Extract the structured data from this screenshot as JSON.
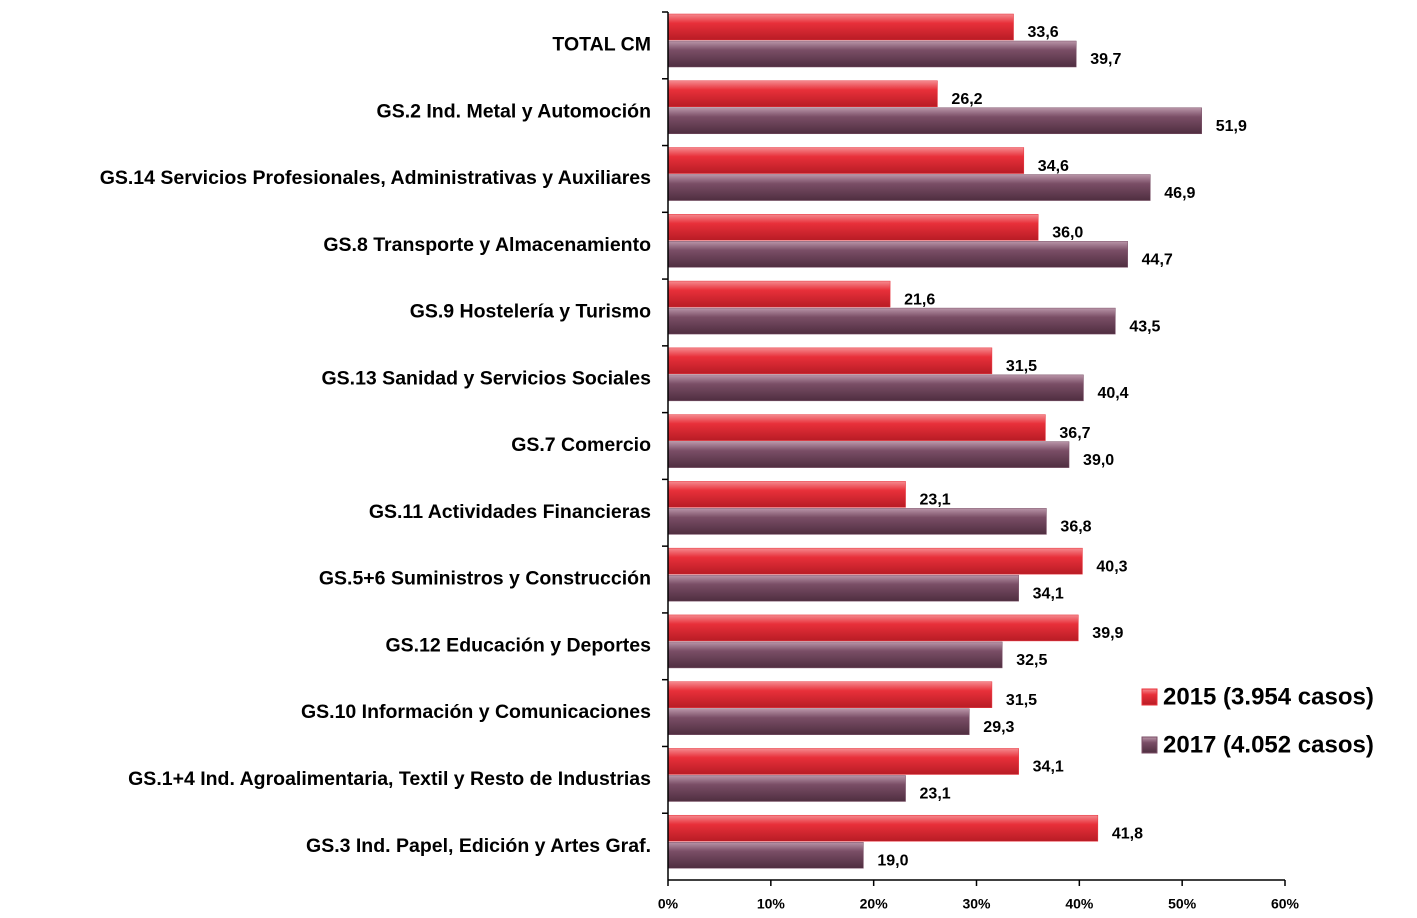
{
  "chart_data": {
    "type": "bar",
    "orientation": "horizontal",
    "categories": [
      "TOTAL CM",
      "GS.2 Ind. Metal y Automoción",
      "GS.14 Servicios Profesionales, Administrativas y Auxiliares",
      "GS.8 Transporte y Almacenamiento",
      "GS.9 Hostelería y Turismo",
      "GS.13 Sanidad y Servicios Sociales",
      "GS.7 Comercio",
      "GS.11 Actividades Financieras",
      "GS.5+6 Suministros  y Construcción",
      "GS.12 Educación y Deportes",
      "GS.10 Información y Comunicaciones",
      "GS.1+4 Ind. Agroalimentaria, Textil y Resto de Industrias",
      "GS.3 Ind. Papel, Edición y Artes Graf."
    ],
    "series": [
      {
        "name": "2015 (3.954 casos)",
        "color": "#e8303a",
        "values": [
          33.6,
          26.2,
          34.6,
          36.0,
          21.6,
          31.5,
          36.7,
          23.1,
          40.3,
          39.9,
          31.5,
          34.1,
          41.8
        ],
        "value_labels": [
          "33,6",
          "26,2",
          "34,6",
          "36,0",
          "21,6",
          "31,5",
          "36,7",
          "23,1",
          "40,3",
          "39,9",
          "31,5",
          "34,1",
          "41,8"
        ]
      },
      {
        "name": "2017 (4.052 casos)",
        "color": "#7a4e66",
        "values": [
          39.7,
          51.9,
          46.9,
          44.7,
          43.5,
          40.4,
          39.0,
          36.8,
          34.1,
          32.5,
          29.3,
          23.1,
          19.0
        ],
        "value_labels": [
          "39,7",
          "51,9",
          "46,9",
          "44,7",
          "43,5",
          "40,4",
          "39,0",
          "36,8",
          "34,1",
          "32,5",
          "29,3",
          "23,1",
          "19,0"
        ]
      }
    ],
    "xlim": [
      0,
      60
    ],
    "xticks": [
      {
        "value": 0,
        "label": "0%"
      },
      {
        "value": 10,
        "label": "10%"
      },
      {
        "value": 20,
        "label": "20%"
      },
      {
        "value": 30,
        "label": "30%"
      },
      {
        "value": 40,
        "label": "40%"
      },
      {
        "value": 50,
        "label": "50%"
      },
      {
        "value": 60,
        "label": "60%"
      }
    ],
    "legend": "right"
  }
}
